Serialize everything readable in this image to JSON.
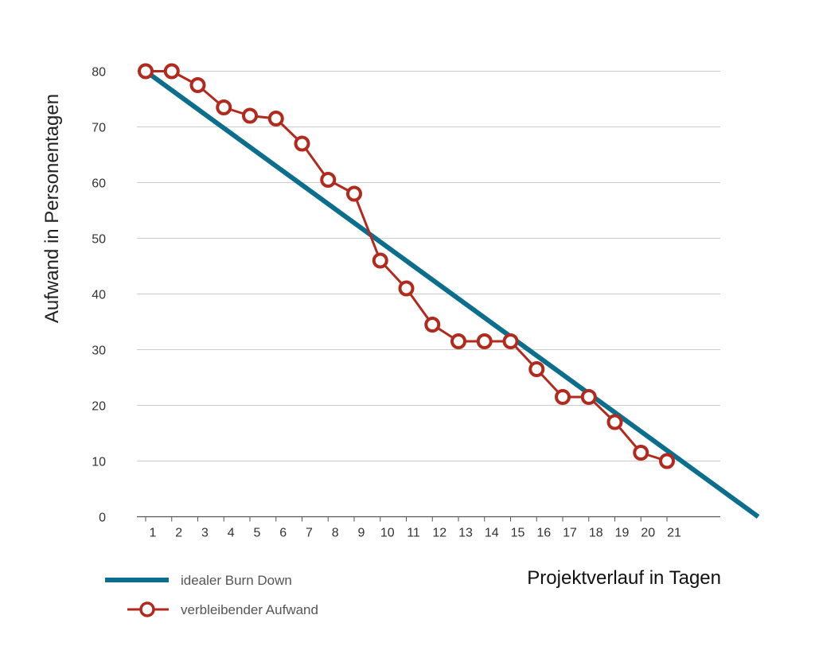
{
  "chart_data": {
    "type": "line",
    "xlabel": "Projektverlauf in Tagen",
    "ylabel": "Aufwand in Personentagen",
    "ylim": [
      0,
      80
    ],
    "yticks": [
      0,
      10,
      20,
      30,
      40,
      50,
      60,
      70,
      80
    ],
    "x_tick_labels": [
      "1",
      "2",
      "3",
      "4",
      "5",
      "6",
      "7",
      "8",
      "9",
      "10",
      "11",
      "12",
      "13",
      "14",
      "15",
      "16",
      "17",
      "18",
      "19",
      "20",
      "21"
    ],
    "grid": true,
    "legend_position": "bottom-left",
    "series": [
      {
        "name": "idealer Burn Down",
        "color": "#0c6e8d",
        "marker": "none",
        "points": [
          [
            1,
            80
          ],
          [
            24.5,
            0
          ]
        ]
      },
      {
        "name": "verbleibender Aufwand",
        "color": "#b22a1d",
        "marker": "open-circle",
        "points": [
          [
            1,
            80
          ],
          [
            2,
            80
          ],
          [
            3,
            77.5
          ],
          [
            4,
            73.5
          ],
          [
            5,
            72
          ],
          [
            6,
            71.5
          ],
          [
            7,
            67
          ],
          [
            8,
            60.5
          ],
          [
            9,
            58
          ],
          [
            10,
            46
          ],
          [
            11,
            41
          ],
          [
            12,
            34.5
          ],
          [
            13,
            31.5
          ],
          [
            14,
            31.5
          ],
          [
            15,
            31.5
          ],
          [
            16,
            26.5
          ],
          [
            17,
            21.5
          ],
          [
            18,
            21.5
          ],
          [
            19,
            17
          ],
          [
            20,
            11.5
          ],
          [
            21,
            10
          ]
        ]
      }
    ]
  }
}
